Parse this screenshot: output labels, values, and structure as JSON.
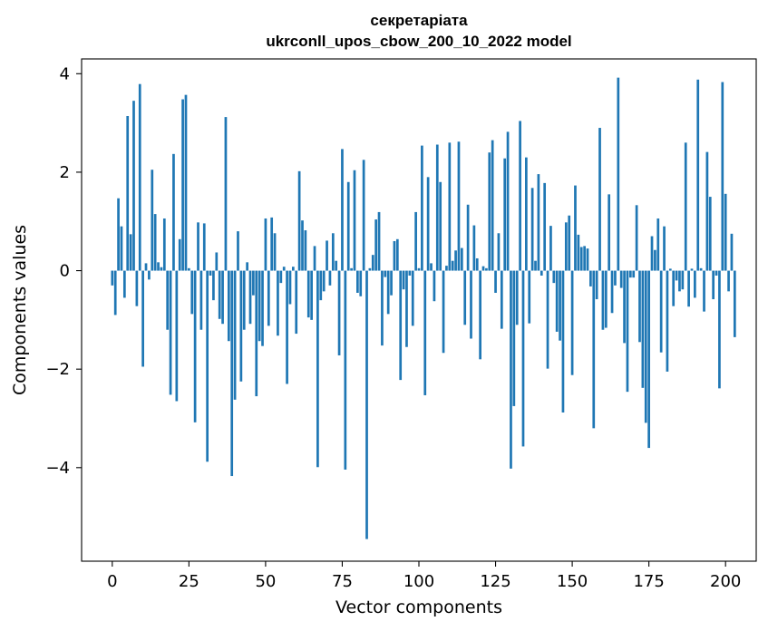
{
  "chart_data": {
    "type": "bar",
    "title": "секретаріата",
    "subtitle": "ukrconll_upos_cbow_200_10_2022 model",
    "xlabel": "Vector components",
    "ylabel": "Components values",
    "xlim": [
      -10,
      210
    ],
    "ylim": [
      -5.9,
      4.3
    ],
    "xticks": [
      0,
      25,
      50,
      75,
      100,
      125,
      150,
      175,
      200
    ],
    "yticks": [
      -4,
      -2,
      0,
      2,
      4
    ],
    "ytick_labels": [
      "−4",
      "−2",
      "0",
      "2",
      "4"
    ],
    "bar_color": "#1f77b4",
    "grid": false,
    "values": [
      -0.3,
      -0.9,
      1.47,
      0.9,
      -0.55,
      3.14,
      0.74,
      3.45,
      -0.72,
      3.79,
      -1.95,
      0.15,
      -0.18,
      2.05,
      1.15,
      0.17,
      0.07,
      1.06,
      -1.2,
      -2.52,
      2.37,
      -2.65,
      0.64,
      3.48,
      3.57,
      0.05,
      -0.88,
      -3.08,
      0.98,
      -1.2,
      0.96,
      -3.88,
      -0.1,
      -0.6,
      0.37,
      -0.98,
      -1.08,
      3.12,
      -1.43,
      -4.17,
      -2.62,
      0.8,
      -2.25,
      -1.2,
      0.17,
      -1.08,
      -0.5,
      -2.55,
      -1.43,
      -1.53,
      1.06,
      -1.12,
      1.08,
      0.76,
      -1.32,
      -0.25,
      0.08,
      -2.3,
      -0.68,
      0.08,
      -1.28,
      2.02,
      1.02,
      0.82,
      -0.95,
      -1.0,
      0.5,
      -3.99,
      -0.6,
      -0.42,
      0.61,
      -0.3,
      0.76,
      0.2,
      -1.72,
      2.47,
      -4.04,
      1.8,
      0.05,
      2.04,
      -0.45,
      -0.52,
      2.25,
      -5.45,
      0.05,
      0.32,
      1.04,
      1.19,
      -1.52,
      -0.13,
      -0.88,
      -0.5,
      0.6,
      0.64,
      -2.22,
      -0.38,
      -1.55,
      -0.1,
      -1.12,
      1.19,
      0.05,
      2.54,
      -2.53,
      1.9,
      0.15,
      -0.62,
      2.56,
      1.8,
      -1.67,
      0.1,
      2.6,
      0.2,
      0.41,
      2.62,
      0.46,
      -1.1,
      1.34,
      -1.38,
      0.92,
      0.25,
      -1.8,
      0.09,
      0.05,
      2.4,
      2.65,
      -0.45,
      0.76,
      -1.18,
      2.28,
      2.82,
      -4.02,
      -2.75,
      -1.1,
      3.04,
      -3.57,
      2.3,
      -1.07,
      1.68,
      0.2,
      1.96,
      -0.1,
      1.78,
      -1.99,
      0.91,
      -0.25,
      -1.24,
      -1.42,
      -2.88,
      0.98,
      1.12,
      -2.12,
      1.73,
      0.73,
      0.48,
      0.5,
      0.45,
      -0.32,
      -3.2,
      -0.58,
      2.9,
      -1.2,
      -1.16,
      1.55,
      -0.86,
      -0.3,
      3.92,
      -0.35,
      -1.47,
      -2.46,
      -0.14,
      -0.14,
      1.33,
      -1.45,
      -2.38,
      -3.09,
      -3.6,
      0.7,
      0.42,
      1.06,
      -1.66,
      0.9,
      -2.05,
      0.04,
      -0.72,
      -0.2,
      -0.42,
      -0.38,
      2.6,
      -0.73,
      0.04,
      -0.55,
      3.88,
      0.05,
      -0.83,
      2.41,
      1.5,
      -0.58,
      -0.1,
      -2.39,
      3.83,
      1.56,
      -0.42,
      0.75,
      -1.35
    ]
  }
}
